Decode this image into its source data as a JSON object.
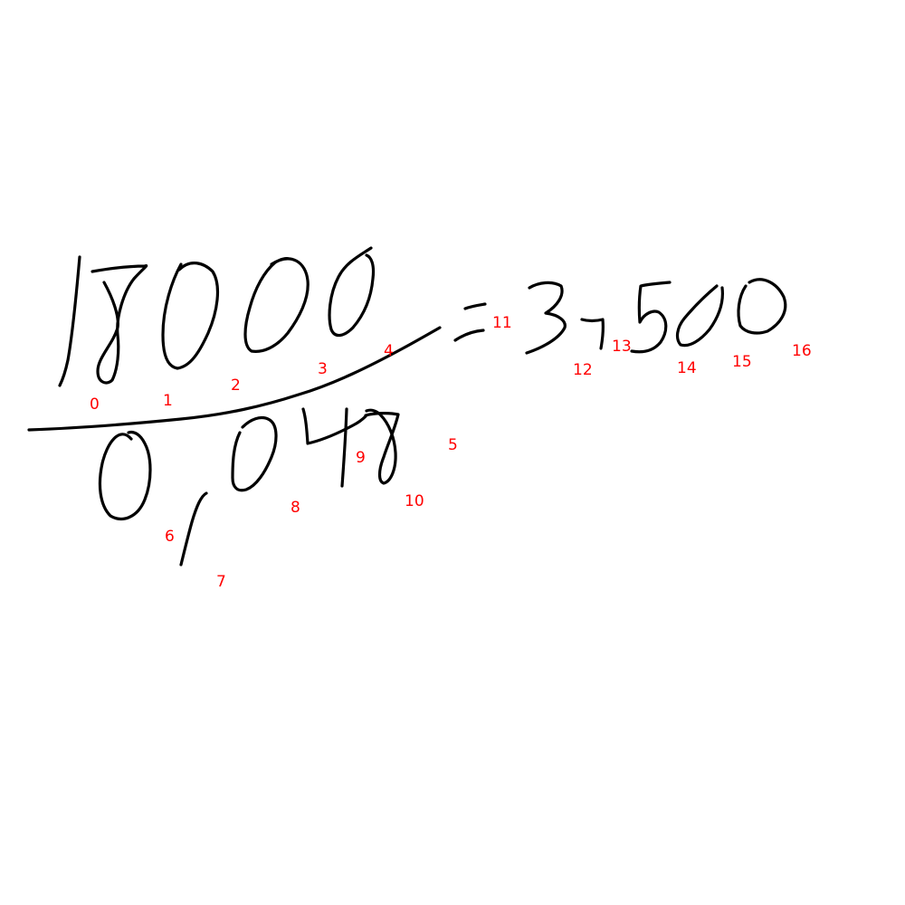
{
  "ink_color": "#000000",
  "label_color": "#ff0000",
  "background": "#ffffff",
  "stroke_labels": [
    "0",
    "1",
    "2",
    "3",
    "4",
    "5",
    "6",
    "7",
    "8",
    "9",
    "10",
    "11",
    "12",
    "13",
    "14",
    "15",
    "16"
  ]
}
